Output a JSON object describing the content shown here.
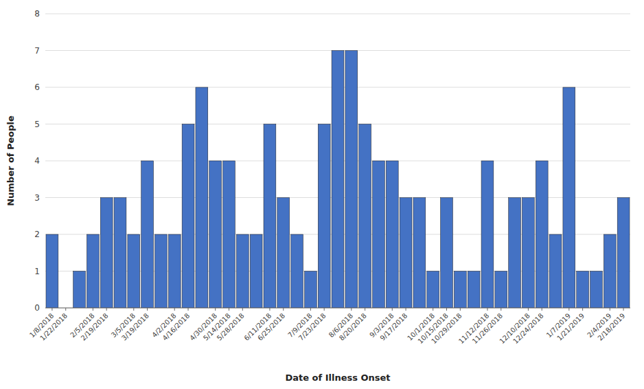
{
  "chart_data": {
    "type": "bar",
    "x_label": "Date of Illness Onset",
    "y_label": "Number of People",
    "categories": [
      "1/8/2018",
      "1/22/2018",
      null,
      "2/5/2018",
      "2/19/2018",
      null,
      "3/5/2018",
      "3/19/2018",
      null,
      "4/2/2018",
      "4/16/2018",
      null,
      "4/30/2018",
      "5/14/2018",
      "5/28/2018",
      null,
      "6/11/2018",
      "6/25/2018",
      null,
      "7/9/2018",
      "7/23/2018",
      null,
      "8/6/2018",
      "8/20/2018",
      null,
      "9/3/2018",
      "9/17/2018",
      null,
      "10/1/2018",
      "10/15/2018",
      "10/29/2018",
      null,
      "11/12/2018",
      "11/26/2018",
      null,
      "12/10/2018",
      "12/24/2018",
      null,
      "1/7/2019",
      "1/21/2019",
      null,
      "2/4/2019",
      "2/18/2019"
    ],
    "values": [
      2,
      0,
      1,
      2,
      3,
      3,
      2,
      4,
      2,
      2,
      5,
      6,
      4,
      4,
      2,
      2,
      5,
      3,
      2,
      1,
      5,
      7,
      7,
      5,
      4,
      4,
      3,
      3,
      1,
      3,
      1,
      1,
      4,
      1,
      3,
      3,
      4,
      2,
      6,
      1,
      1,
      2,
      3
    ],
    "color": "#4472C4",
    "ylim": [
      0,
      8
    ],
    "yticks": [
      0,
      1,
      2,
      3,
      4,
      5,
      6,
      7,
      8
    ],
    "grid": true
  }
}
